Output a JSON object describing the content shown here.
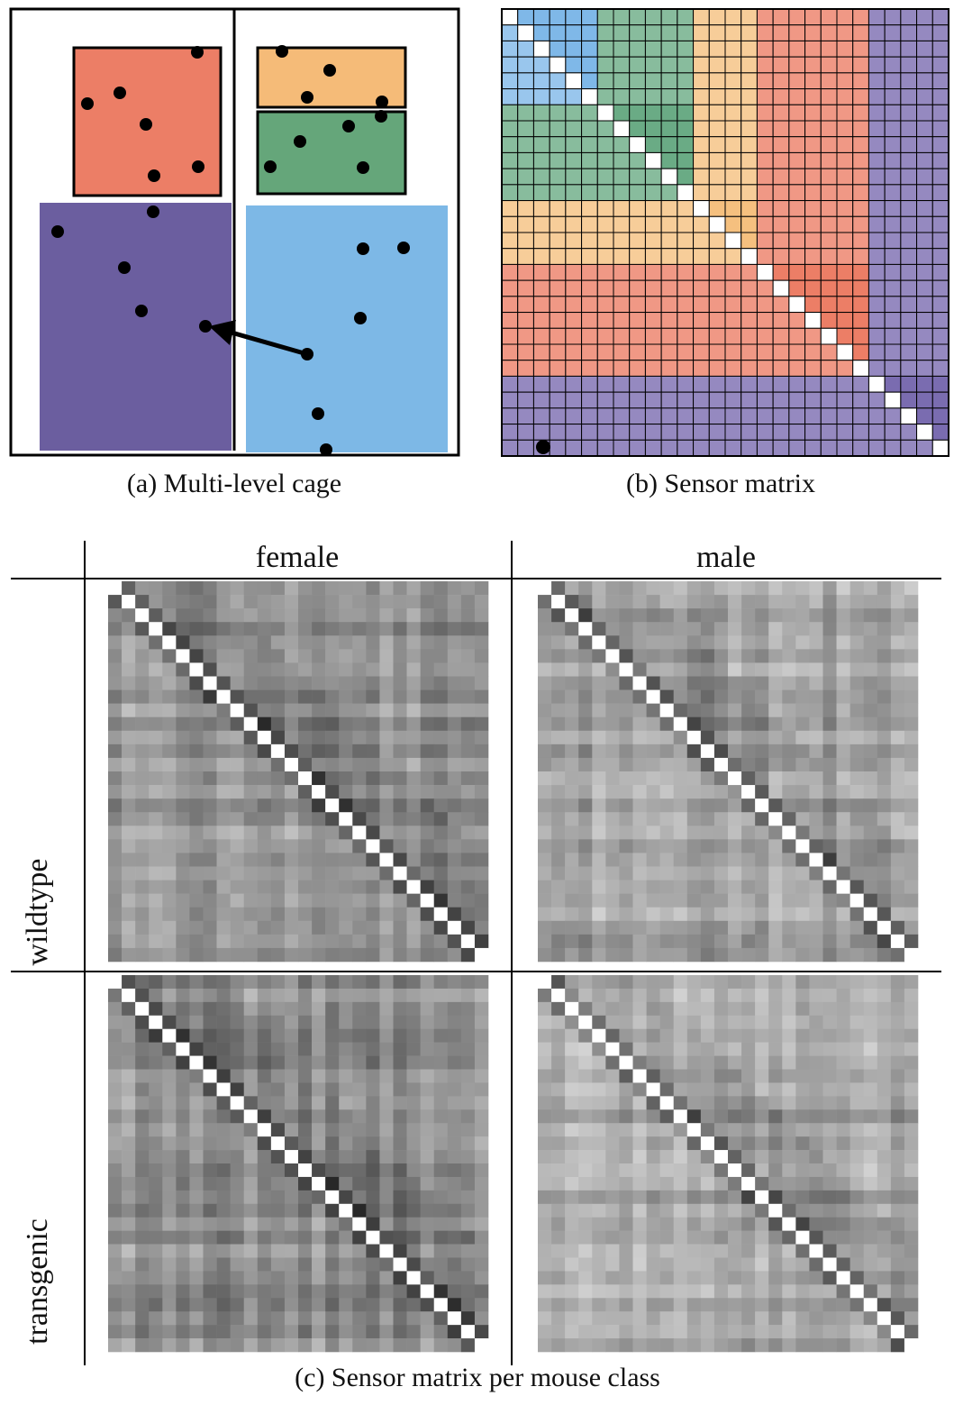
{
  "panel_a": {
    "caption": "(a)  Multi-level cage"
  },
  "panel_b": {
    "caption": "(b)  Sensor matrix",
    "grid_size": 28,
    "group_boundaries": [
      0,
      6,
      12,
      16,
      23,
      28
    ],
    "group_colors": [
      "#7fb8e8",
      "#6aab85",
      "#f5c07f",
      "#ec7e66",
      "#7a6cb0"
    ]
  },
  "panel_c": {
    "caption": "(c)  Sensor matrix per mouse class",
    "col_headers": [
      "female",
      "male"
    ],
    "row_headers": [
      "wildtype",
      "transgenic"
    ],
    "grid_size": 28
  },
  "colors": {
    "red": "#ec7e66",
    "orange": "#f5bb78",
    "green": "#65a67a",
    "purple": "#6b5e9f",
    "blue": "#7db8e6"
  }
}
